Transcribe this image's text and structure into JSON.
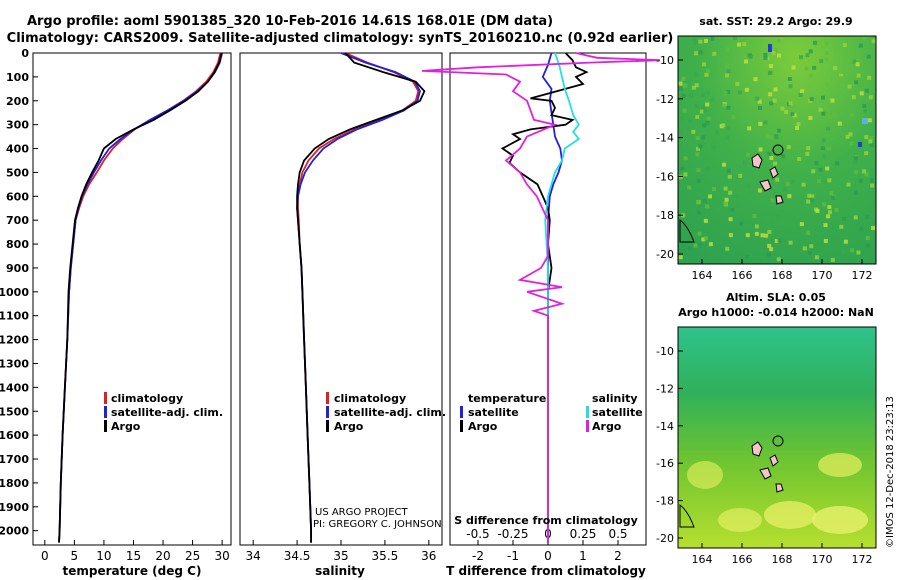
{
  "header": {
    "title_line1": "Argo profile: aoml 5901385_320 10-Feb-2016 14.61S 168.01E (DM data)",
    "title_line2": "Climatology: CARS2009. Satellite-adjusted climatology: synTS_20160210.nc (0.92d earlier)"
  },
  "colors": {
    "climatology": "#e02020",
    "satellite": "#2020e0",
    "argo": "#000000",
    "argo_s": "#e020e0",
    "satellite_s": "#20e0e0"
  },
  "depth_axis": {
    "ticks": [
      0,
      100,
      200,
      300,
      400,
      500,
      600,
      700,
      800,
      900,
      1000,
      1100,
      1200,
      1300,
      1400,
      1500,
      1600,
      1700,
      1800,
      1900,
      2000
    ],
    "range": [
      0,
      2060
    ]
  },
  "chart_data": [
    {
      "type": "line",
      "xlabel": "temperature (deg C)",
      "xlim": [
        -2,
        31.5
      ],
      "xticks": [
        0,
        5,
        10,
        15,
        20,
        25,
        30
      ],
      "legend": [
        "climatology",
        "satellite-adj. clim.",
        "Argo"
      ],
      "series": [
        {
          "name": "climatology",
          "points": [
            [
              29.7,
              0
            ],
            [
              29.3,
              40
            ],
            [
              28.5,
              80
            ],
            [
              27.3,
              120
            ],
            [
              25.6,
              160
            ],
            [
              23.4,
              200
            ],
            [
              20.8,
              240
            ],
            [
              17.8,
              280
            ],
            [
              15.2,
              320
            ],
            [
              13.2,
              360
            ],
            [
              11.5,
              400
            ],
            [
              10.0,
              450
            ],
            [
              8.8,
              500
            ],
            [
              7.5,
              550
            ],
            [
              6.5,
              600
            ],
            [
              5.8,
              650
            ],
            [
              5.2,
              700
            ],
            [
              4.8,
              800
            ],
            [
              4.4,
              900
            ],
            [
              4.1,
              1000
            ],
            [
              3.8,
              1200
            ],
            [
              3.4,
              1400
            ],
            [
              3.0,
              1600
            ],
            [
              2.7,
              1800
            ],
            [
              2.5,
              2000
            ],
            [
              2.4,
              2050
            ]
          ]
        },
        {
          "name": "satellite-adj. clim.",
          "points": [
            [
              30.0,
              0
            ],
            [
              29.6,
              40
            ],
            [
              28.8,
              80
            ],
            [
              27.6,
              120
            ],
            [
              25.8,
              160
            ],
            [
              23.5,
              200
            ],
            [
              20.8,
              240
            ],
            [
              17.8,
              280
            ],
            [
              15.1,
              320
            ],
            [
              12.8,
              360
            ],
            [
              10.9,
              400
            ],
            [
              9.5,
              450
            ],
            [
              8.3,
              500
            ],
            [
              7.2,
              550
            ],
            [
              6.3,
              600
            ],
            [
              5.7,
              650
            ],
            [
              5.2,
              700
            ],
            [
              4.8,
              800
            ],
            [
              4.4,
              900
            ],
            [
              4.1,
              1000
            ],
            [
              3.8,
              1200
            ],
            [
              3.4,
              1400
            ],
            [
              3.0,
              1600
            ],
            [
              2.7,
              1800
            ],
            [
              2.5,
              2000
            ],
            [
              2.4,
              2050
            ]
          ]
        },
        {
          "name": "Argo",
          "points": [
            [
              29.9,
              0
            ],
            [
              29.5,
              40
            ],
            [
              28.7,
              80
            ],
            [
              27.6,
              120
            ],
            [
              26.0,
              160
            ],
            [
              23.8,
              200
            ],
            [
              21.2,
              240
            ],
            [
              18.4,
              280
            ],
            [
              15.0,
              320
            ],
            [
              12.0,
              360
            ],
            [
              10.0,
              400
            ],
            [
              9.1,
              450
            ],
            [
              8.0,
              500
            ],
            [
              7.0,
              550
            ],
            [
              6.2,
              600
            ],
            [
              5.6,
              650
            ],
            [
              5.1,
              700
            ],
            [
              4.7,
              800
            ],
            [
              4.3,
              900
            ],
            [
              4.0,
              1000
            ],
            [
              3.8,
              1200
            ],
            [
              3.4,
              1400
            ],
            [
              3.0,
              1600
            ],
            [
              2.7,
              1800
            ],
            [
              2.5,
              2000
            ],
            [
              2.4,
              2050
            ]
          ]
        }
      ]
    },
    {
      "type": "line",
      "xlabel": "salinity",
      "xlim": [
        33.85,
        36.15
      ],
      "xticks": [
        34,
        34.5,
        35,
        35.5,
        36
      ],
      "legend": [
        "climatology",
        "satellite-adj. clim.",
        "Argo"
      ],
      "series": [
        {
          "name": "climatology",
          "points": [
            [
              35.05,
              0
            ],
            [
              35.3,
              40
            ],
            [
              35.6,
              80
            ],
            [
              35.82,
              120
            ],
            [
              35.88,
              160
            ],
            [
              35.85,
              200
            ],
            [
              35.7,
              240
            ],
            [
              35.45,
              280
            ],
            [
              35.15,
              320
            ],
            [
              34.92,
              360
            ],
            [
              34.75,
              400
            ],
            [
              34.63,
              450
            ],
            [
              34.56,
              500
            ],
            [
              34.53,
              550
            ],
            [
              34.51,
              600
            ],
            [
              34.51,
              650
            ],
            [
              34.52,
              700
            ],
            [
              34.53,
              800
            ],
            [
              34.55,
              900
            ],
            [
              34.56,
              1000
            ],
            [
              34.58,
              1200
            ],
            [
              34.6,
              1400
            ],
            [
              34.62,
              1600
            ],
            [
              34.64,
              1800
            ],
            [
              34.66,
              2000
            ],
            [
              34.66,
              2050
            ]
          ]
        },
        {
          "name": "satellite-adj. clim.",
          "points": [
            [
              35.0,
              0
            ],
            [
              35.28,
              40
            ],
            [
              35.62,
              80
            ],
            [
              35.84,
              120
            ],
            [
              35.9,
              160
            ],
            [
              35.87,
              200
            ],
            [
              35.72,
              240
            ],
            [
              35.47,
              280
            ],
            [
              35.18,
              320
            ],
            [
              34.96,
              360
            ],
            [
              34.8,
              400
            ],
            [
              34.68,
              450
            ],
            [
              34.59,
              500
            ],
            [
              34.54,
              550
            ],
            [
              34.51,
              600
            ],
            [
              34.5,
              650
            ],
            [
              34.51,
              700
            ],
            [
              34.53,
              800
            ],
            [
              34.55,
              900
            ],
            [
              34.56,
              1000
            ],
            [
              34.58,
              1200
            ],
            [
              34.6,
              1400
            ],
            [
              34.62,
              1600
            ],
            [
              34.64,
              1800
            ],
            [
              34.66,
              2000
            ],
            [
              34.66,
              2050
            ]
          ]
        },
        {
          "name": "Argo",
          "points": [
            [
              35.05,
              0
            ],
            [
              35.15,
              40
            ],
            [
              35.48,
              80
            ],
            [
              35.85,
              120
            ],
            [
              35.95,
              160
            ],
            [
              35.9,
              200
            ],
            [
              35.7,
              240
            ],
            [
              35.4,
              280
            ],
            [
              35.1,
              320
            ],
            [
              34.86,
              360
            ],
            [
              34.7,
              400
            ],
            [
              34.58,
              450
            ],
            [
              34.53,
              500
            ],
            [
              34.51,
              550
            ],
            [
              34.5,
              600
            ],
            [
              34.5,
              650
            ],
            [
              34.51,
              700
            ],
            [
              34.53,
              800
            ],
            [
              34.55,
              900
            ],
            [
              34.56,
              1000
            ],
            [
              34.58,
              1200
            ],
            [
              34.6,
              1400
            ],
            [
              34.62,
              1600
            ],
            [
              34.64,
              1800
            ],
            [
              34.66,
              2000
            ],
            [
              34.66,
              2050
            ]
          ]
        }
      ]
    },
    {
      "type": "line",
      "xlabel": "T difference from climatology",
      "xlabel_top": "S difference from climatology",
      "xlim": [
        -2.8,
        2.8
      ],
      "xticks": [
        -2,
        -1,
        0,
        1,
        2
      ],
      "xticks_top": [
        -0.5,
        -0.25,
        0,
        0.25,
        0.5
      ],
      "legend_t_title": "temperature",
      "legend_s_title": "salinity",
      "legend_t": [
        "satellite",
        "Argo"
      ],
      "legend_s": [
        "satellite",
        "Argo"
      ],
      "series": [
        {
          "name": "T satellite",
          "points": [
            [
              0.1,
              0
            ],
            [
              0.0,
              50
            ],
            [
              -0.15,
              100
            ],
            [
              0.1,
              150
            ],
            [
              0.05,
              200
            ],
            [
              0.1,
              250
            ],
            [
              0.15,
              300
            ],
            [
              0.2,
              350
            ],
            [
              0.35,
              400
            ],
            [
              0.4,
              450
            ],
            [
              0.3,
              500
            ],
            [
              0.15,
              550
            ],
            [
              0.05,
              600
            ],
            [
              0.0,
              700
            ],
            [
              0.0,
              900
            ],
            [
              0.0,
              2050
            ]
          ]
        },
        {
          "name": "T Argo",
          "points": [
            [
              0.5,
              0
            ],
            [
              0.7,
              30
            ],
            [
              0.8,
              60
            ],
            [
              1.1,
              80
            ],
            [
              0.8,
              100
            ],
            [
              1.0,
              130
            ],
            [
              0.0,
              170
            ],
            [
              -0.5,
              190
            ],
            [
              0.1,
              200
            ],
            [
              0.2,
              230
            ],
            [
              0.1,
              260
            ],
            [
              0.7,
              280
            ],
            [
              0.5,
              300
            ],
            [
              -0.5,
              320
            ],
            [
              -1.0,
              340
            ],
            [
              -0.8,
              360
            ],
            [
              -1.3,
              400
            ],
            [
              -1.0,
              430
            ],
            [
              -1.1,
              460
            ],
            [
              -0.8,
              500
            ],
            [
              -0.3,
              550
            ],
            [
              -0.15,
              600
            ],
            [
              0.0,
              650
            ],
            [
              0.05,
              700
            ],
            [
              0.0,
              800
            ],
            [
              0.1,
              900
            ],
            [
              0.0,
              1000
            ],
            [
              0.0,
              2050
            ]
          ]
        },
        {
          "name": "S satellite",
          "points": [
            [
              0.05,
              0
            ],
            [
              0.08,
              50
            ],
            [
              0.1,
              100
            ],
            [
              0.12,
              150
            ],
            [
              0.15,
              200
            ],
            [
              0.18,
              260
            ],
            [
              0.22,
              300
            ],
            [
              0.18,
              330
            ],
            [
              0.22,
              360
            ],
            [
              0.12,
              400
            ],
            [
              0.1,
              450
            ],
            [
              0.05,
              500
            ],
            [
              0.0,
              600
            ],
            [
              -0.02,
              700
            ],
            [
              0.0,
              900
            ],
            [
              0.0,
              2050
            ]
          ]
        },
        {
          "name": "S Argo",
          "points": [
            [
              0.2,
              0
            ],
            [
              0.35,
              20
            ],
            [
              0.8,
              30
            ],
            [
              0.3,
              40
            ],
            [
              -0.5,
              60
            ],
            [
              -0.9,
              75
            ],
            [
              -0.3,
              90
            ],
            [
              -0.2,
              120
            ],
            [
              -0.25,
              160
            ],
            [
              -0.15,
              200
            ],
            [
              -0.1,
              280
            ],
            [
              0.05,
              300
            ],
            [
              -0.15,
              350
            ],
            [
              -0.2,
              400
            ],
            [
              -0.3,
              450
            ],
            [
              -0.2,
              500
            ],
            [
              -0.15,
              550
            ],
            [
              -0.08,
              600
            ],
            [
              0.0,
              700
            ],
            [
              0.0,
              850
            ],
            [
              -0.05,
              900
            ],
            [
              -0.2,
              950
            ],
            [
              0.1,
              980
            ],
            [
              -0.15,
              1000
            ],
            [
              0.1,
              1050
            ],
            [
              -0.1,
              1080
            ],
            [
              0.0,
              1100
            ],
            [
              0.0,
              2050
            ]
          ]
        }
      ]
    }
  ],
  "credits": {
    "line1": "US ARGO PROJECT",
    "line2": "PI: GREGORY C. JOHNSON"
  },
  "maps": [
    {
      "title": "sat. SST: 29.2 Argo: 29.9",
      "xticks": [
        "164",
        "166",
        "168",
        "170",
        "172"
      ],
      "yticks": [
        "-10",
        "-12",
        "-14",
        "-16",
        "-18",
        "-20"
      ]
    },
    {
      "title_line1": "Altim. SLA: 0.05",
      "title_line2": "Argo h1000: -0.014 h2000: NaN",
      "xticks": [
        "164",
        "166",
        "168",
        "170",
        "172"
      ],
      "yticks": [
        "-10",
        "-12",
        "-14",
        "-16",
        "-18",
        "-20"
      ]
    }
  ],
  "footer": {
    "stamp": "©IMOS 12-Dec-2018 23:23:13"
  }
}
